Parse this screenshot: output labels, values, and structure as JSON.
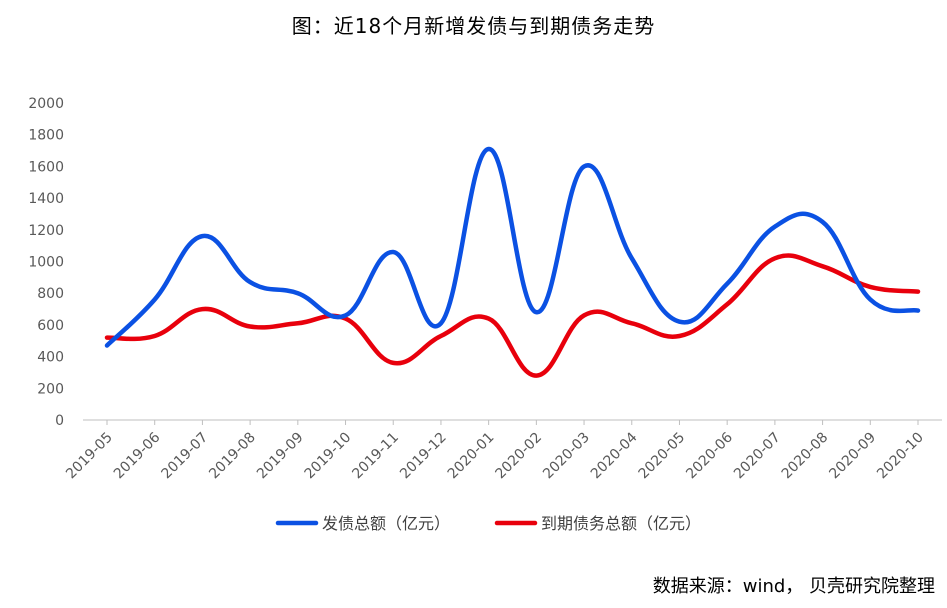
{
  "chart_data": {
    "type": "line",
    "title": "图：近18个月新增发债与到期债务走势",
    "categories": [
      "2019-05",
      "2019-06",
      "2019-07",
      "2019-08",
      "2019-09",
      "2019-10",
      "2019-11",
      "2019-12",
      "2020-01",
      "2020-02",
      "2020-03",
      "2020-04",
      "2020-05",
      "2020-06",
      "2020-07",
      "2020-08",
      "2020-09",
      "2020-10"
    ],
    "series": [
      {
        "name": "发债总额（亿元）",
        "color": "#0b51e3",
        "values": [
          470,
          760,
          1160,
          870,
          800,
          660,
          1060,
          610,
          1710,
          680,
          1600,
          1020,
          620,
          860,
          1220,
          1250,
          760,
          690
        ]
      },
      {
        "name": "到期债务总额（亿元）",
        "color": "#e8000c",
        "values": [
          520,
          530,
          700,
          590,
          610,
          640,
          360,
          530,
          640,
          280,
          660,
          610,
          530,
          730,
          1020,
          970,
          840,
          810
        ]
      }
    ],
    "ylim": [
      0,
      2000
    ],
    "yticks": [
      0,
      200,
      400,
      600,
      800,
      1000,
      1200,
      1400,
      1600,
      1800,
      2000
    ],
    "grid": false,
    "legend_position": "bottom",
    "source": "数据来源：wind，  贝壳研究院整理"
  }
}
